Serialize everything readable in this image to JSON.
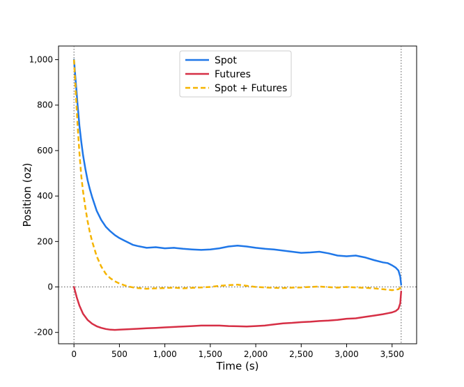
{
  "chart_data": {
    "type": "line",
    "xlabel": "Time (s)",
    "ylabel": "Position (oz)",
    "xlim": [
      -170,
      3770
    ],
    "ylim": [
      -250,
      1060
    ],
    "x_ticks": [
      0,
      500,
      1000,
      1500,
      2000,
      2500,
      3000,
      3500
    ],
    "x_tick_labels": [
      "0",
      "500",
      "1,000",
      "1,500",
      "2,000",
      "2,500",
      "3,000",
      "3,500"
    ],
    "y_ticks": [
      -200,
      0,
      200,
      400,
      600,
      800,
      1000
    ],
    "y_tick_labels": [
      "-200",
      "0",
      "200",
      "400",
      "600",
      "800",
      "1,000"
    ],
    "reference_lines": {
      "horizontal": [
        0
      ],
      "vertical": [
        0,
        3600
      ]
    },
    "legend": {
      "position": "top-center"
    },
    "grid": false,
    "series": [
      {
        "name": "Spot",
        "color": "#1f77e8",
        "style": "solid",
        "x": [
          0,
          20,
          40,
          60,
          80,
          100,
          125,
          150,
          175,
          200,
          250,
          300,
          350,
          400,
          450,
          500,
          550,
          600,
          650,
          700,
          800,
          900,
          1000,
          1100,
          1200,
          1300,
          1400,
          1500,
          1600,
          1700,
          1800,
          1900,
          2000,
          2100,
          2200,
          2300,
          2400,
          2500,
          2600,
          2700,
          2800,
          2900,
          3000,
          3100,
          3200,
          3300,
          3400,
          3450,
          3500,
          3540,
          3570,
          3590,
          3600
        ],
        "y": [
          1000,
          900,
          800,
          710,
          640,
          580,
          520,
          470,
          430,
          395,
          335,
          295,
          265,
          245,
          228,
          215,
          205,
          195,
          185,
          180,
          172,
          175,
          170,
          172,
          168,
          165,
          163,
          165,
          170,
          178,
          182,
          178,
          172,
          168,
          165,
          160,
          155,
          150,
          152,
          155,
          148,
          138,
          135,
          138,
          130,
          118,
          108,
          105,
          95,
          85,
          72,
          45,
          10
        ]
      },
      {
        "name": "Futures",
        "color": "#d62f45",
        "style": "solid",
        "x": [
          0,
          30,
          60,
          100,
          150,
          200,
          250,
          300,
          350,
          400,
          450,
          500,
          600,
          700,
          800,
          900,
          1000,
          1100,
          1200,
          1300,
          1400,
          1500,
          1600,
          1700,
          1800,
          1900,
          2000,
          2100,
          2200,
          2300,
          2400,
          2500,
          2600,
          2700,
          2800,
          2900,
          3000,
          3100,
          3200,
          3300,
          3400,
          3450,
          3500,
          3540,
          3570,
          3590,
          3600
        ],
        "y": [
          0,
          -45,
          -82,
          -118,
          -145,
          -162,
          -173,
          -180,
          -185,
          -188,
          -189,
          -188,
          -186,
          -184,
          -182,
          -180,
          -178,
          -176,
          -174,
          -172,
          -170,
          -170,
          -170,
          -172,
          -173,
          -174,
          -172,
          -170,
          -165,
          -160,
          -158,
          -155,
          -153,
          -150,
          -148,
          -145,
          -140,
          -138,
          -132,
          -126,
          -120,
          -116,
          -112,
          -106,
          -96,
          -72,
          -20
        ]
      },
      {
        "name": "Spot + Futures",
        "color": "#f5b400",
        "style": "dashed",
        "x": [
          0,
          20,
          40,
          60,
          80,
          100,
          125,
          150,
          175,
          200,
          250,
          300,
          350,
          400,
          450,
          500,
          550,
          600,
          650,
          700,
          800,
          900,
          1000,
          1100,
          1200,
          1300,
          1400,
          1500,
          1600,
          1700,
          1800,
          1900,
          2000,
          2100,
          2200,
          2300,
          2400,
          2500,
          2600,
          2700,
          2800,
          2900,
          3000,
          3100,
          3200,
          3300,
          3400,
          3450,
          3500,
          3540,
          3570,
          3590,
          3600
        ],
        "y": [
          1000,
          855,
          710,
          590,
          490,
          420,
          350,
          290,
          240,
          200,
          135,
          90,
          58,
          38,
          25,
          15,
          8,
          2,
          -2,
          -5,
          -8,
          -6,
          -5,
          -3,
          -6,
          -4,
          -2,
          0,
          5,
          8,
          10,
          5,
          0,
          -2,
          -4,
          -5,
          -3,
          -2,
          0,
          2,
          -1,
          -3,
          0,
          -2,
          -4,
          -6,
          -10,
          -12,
          -14,
          -12,
          -10,
          -5,
          0
        ]
      }
    ]
  }
}
